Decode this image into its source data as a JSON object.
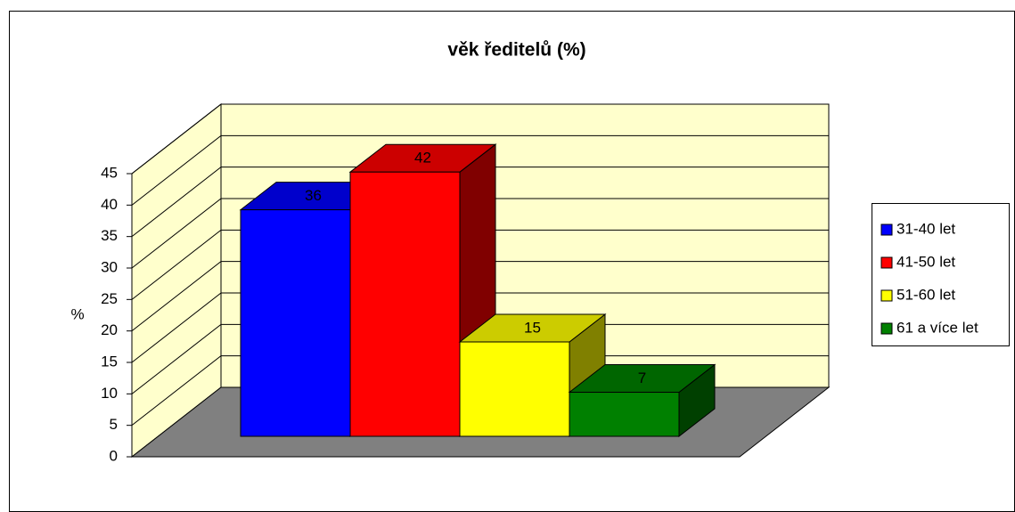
{
  "chart_data": {
    "type": "bar3d",
    "title": "věk ředitelů (%)",
    "y_label": "%",
    "series": [
      {
        "name": "31-40 let",
        "color": "#0000ff",
        "values": [
          36
        ]
      },
      {
        "name": "41-50 let",
        "color": "#ff0000",
        "values": [
          42
        ]
      },
      {
        "name": "51-60 let",
        "color": "#ffff00",
        "values": [
          15
        ]
      },
      {
        "name": "61 a více let",
        "color": "#008000",
        "values": [
          7
        ]
      }
    ],
    "ylim": [
      0,
      45
    ],
    "yticks": [
      0,
      5,
      10,
      15,
      20,
      25,
      30,
      35,
      40,
      45
    ],
    "grid": true,
    "legend": "right"
  }
}
